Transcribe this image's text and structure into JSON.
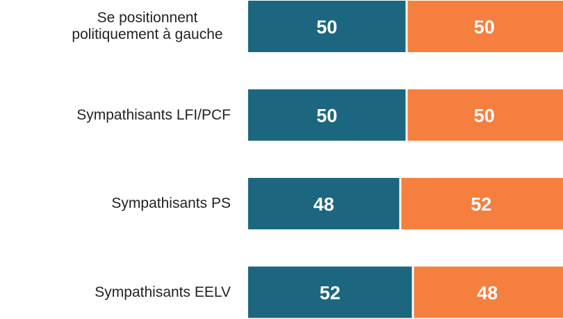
{
  "chart_data": {
    "type": "stacked_barh",
    "categories": [
      "Se positionnent politiquement à gauche",
      "Sympathisants LFI/PCF",
      "Sympathisants PS",
      "Sympathisants EELV"
    ],
    "series": [
      {
        "color": "#1c6680",
        "values": [
          50,
          50,
          48,
          52
        ]
      },
      {
        "color": "#f47f3e",
        "values": [
          50,
          50,
          52,
          48
        ]
      }
    ],
    "xlim": [
      0,
      100
    ]
  }
}
